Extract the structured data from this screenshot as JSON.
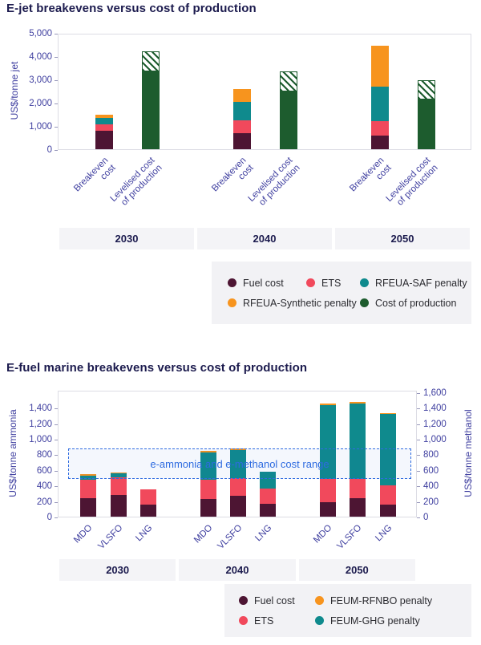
{
  "chart_data": [
    {
      "type": "bar",
      "title": "E-jet breakevens versus cost of production",
      "ylabel": "US$/tonne jet",
      "ylim": [
        0,
        5000
      ],
      "yticks": [
        "0",
        "1,000",
        "2,000",
        "3,000",
        "4,000",
        "5,000"
      ],
      "legend_position": "bottom-right",
      "grid": false,
      "series": [
        {
          "key": "fuel_cost",
          "name": "Fuel cost",
          "color": "#4d1533"
        },
        {
          "key": "ets",
          "name": "ETS",
          "color": "#f1495c"
        },
        {
          "key": "saf",
          "name": "RFEUA-SAF penalty",
          "color": "#0f8a8d"
        },
        {
          "key": "synthetic",
          "name": "RFEUA-Synthetic penalty",
          "color": "#f7941e"
        },
        {
          "key": "production",
          "name": "Cost of production",
          "color": "#1d5c2e"
        }
      ],
      "legend_rows": [
        [
          "fuel_cost",
          "ets",
          "saf"
        ],
        [
          "synthetic",
          "production"
        ]
      ],
      "groups": [
        {
          "year": "2030",
          "bars": [
            {
              "label": [
                "Breakeven",
                "cost"
              ],
              "kind": "stack",
              "segments": [
                {
                  "key": "fuel_cost",
                  "value": 800
                },
                {
                  "key": "ets",
                  "value": 280
                },
                {
                  "key": "saf",
                  "value": 270
                },
                {
                  "key": "synthetic",
                  "value": 150
                }
              ]
            },
            {
              "label": [
                "Levelised cost",
                "of production"
              ],
              "kind": "range",
              "key": "production",
              "solid_to": 3350,
              "hatched_to": 4200
            }
          ]
        },
        {
          "year": "2040",
          "bars": [
            {
              "label": [
                "Breakeven",
                "cost"
              ],
              "kind": "stack",
              "segments": [
                {
                  "key": "fuel_cost",
                  "value": 700
                },
                {
                  "key": "ets",
                  "value": 550
                },
                {
                  "key": "saf",
                  "value": 800
                },
                {
                  "key": "synthetic",
                  "value": 550
                }
              ]
            },
            {
              "label": [
                "Levelised cost",
                "of production"
              ],
              "kind": "range",
              "key": "production",
              "solid_to": 2500,
              "hatched_to": 3350
            }
          ]
        },
        {
          "year": "2050",
          "bars": [
            {
              "label": [
                "Breakeven",
                "cost"
              ],
              "kind": "stack",
              "segments": [
                {
                  "key": "fuel_cost",
                  "value": 600
                },
                {
                  "key": "ets",
                  "value": 600
                },
                {
                  "key": "saf",
                  "value": 1500
                },
                {
                  "key": "synthetic",
                  "value": 1750
                }
              ]
            },
            {
              "label": [
                "Levelised cost",
                "of production"
              ],
              "kind": "range",
              "key": "production",
              "solid_to": 2150,
              "hatched_to": 2950
            }
          ]
        }
      ]
    },
    {
      "type": "bar",
      "title": "E-fuel marine breakevens versus cost of production",
      "ylabel_left": "US$/tonne ammonia",
      "ylabel_right": "US$/tonne methanol",
      "ylim_left": [
        0,
        1400
      ],
      "ylim_right": [
        0,
        1600
      ],
      "yticks_left": [
        "0",
        "200",
        "400",
        "600",
        "800",
        "1,000",
        "1,200",
        "1,400"
      ],
      "yticks_right": [
        "0",
        "200",
        "400",
        "600",
        "800",
        "1,000",
        "1,200",
        "1,400",
        "1,600"
      ],
      "grid": false,
      "cost_range": {
        "label": "e-ammonia and e-methanol cost range",
        "min": 480,
        "max": 880
      },
      "series": [
        {
          "key": "fuel_cost",
          "name": "Fuel cost",
          "color": "#4d1533"
        },
        {
          "key": "ets",
          "name": "ETS",
          "color": "#f1495c"
        },
        {
          "key": "rfnbo",
          "name": "FEUM-RFNBO penalty",
          "color": "#f7941e"
        },
        {
          "key": "ghg",
          "name": "FEUM-GHG penalty",
          "color": "#0f8a8d"
        }
      ],
      "legend_rows": [
        [
          "fuel_cost",
          "rfnbo"
        ],
        [
          "ets",
          "ghg"
        ]
      ],
      "groups": [
        {
          "year": "2030",
          "bars": [
            {
              "label": [
                "MDO"
              ],
              "kind": "stack",
              "segments": [
                {
                  "key": "fuel_cost",
                  "value": 240
                },
                {
                  "key": "ets",
                  "value": 230
                },
                {
                  "key": "ghg",
                  "value": 60
                },
                {
                  "key": "rfnbo",
                  "value": 15
                }
              ]
            },
            {
              "label": [
                "VLSFO"
              ],
              "kind": "stack",
              "segments": [
                {
                  "key": "fuel_cost",
                  "value": 280
                },
                {
                  "key": "ets",
                  "value": 230
                },
                {
                  "key": "ghg",
                  "value": 50
                },
                {
                  "key": "rfnbo",
                  "value": 10
                }
              ]
            },
            {
              "label": [
                "LNG"
              ],
              "kind": "stack",
              "segments": [
                {
                  "key": "fuel_cost",
                  "value": 160
                },
                {
                  "key": "ets",
                  "value": 190
                }
              ]
            }
          ]
        },
        {
          "year": "2040",
          "bars": [
            {
              "label": [
                "MDO"
              ],
              "kind": "stack",
              "segments": [
                {
                  "key": "fuel_cost",
                  "value": 230
                },
                {
                  "key": "ets",
                  "value": 240
                },
                {
                  "key": "ghg",
                  "value": 360
                },
                {
                  "key": "rfnbo",
                  "value": 20
                }
              ]
            },
            {
              "label": [
                "VLSFO"
              ],
              "kind": "stack",
              "segments": [
                {
                  "key": "fuel_cost",
                  "value": 270
                },
                {
                  "key": "ets",
                  "value": 230
                },
                {
                  "key": "ghg",
                  "value": 360
                },
                {
                  "key": "rfnbo",
                  "value": 20
                }
              ]
            },
            {
              "label": [
                "LNG"
              ],
              "kind": "stack",
              "segments": [
                {
                  "key": "fuel_cost",
                  "value": 170
                },
                {
                  "key": "ets",
                  "value": 190
                },
                {
                  "key": "ghg",
                  "value": 220
                }
              ]
            }
          ]
        },
        {
          "year": "2050",
          "bars": [
            {
              "label": [
                "MDO"
              ],
              "kind": "stack",
              "segments": [
                {
                  "key": "fuel_cost",
                  "value": 190
                },
                {
                  "key": "ets",
                  "value": 290
                },
                {
                  "key": "ghg",
                  "value": 950
                },
                {
                  "key": "rfnbo",
                  "value": 25
                }
              ]
            },
            {
              "label": [
                "VLSFO"
              ],
              "kind": "stack",
              "segments": [
                {
                  "key": "fuel_cost",
                  "value": 240
                },
                {
                  "key": "ets",
                  "value": 250
                },
                {
                  "key": "ghg",
                  "value": 960
                },
                {
                  "key": "rfnbo",
                  "value": 25
                }
              ]
            },
            {
              "label": [
                "LNG"
              ],
              "kind": "stack",
              "segments": [
                {
                  "key": "fuel_cost",
                  "value": 160
                },
                {
                  "key": "ets",
                  "value": 240
                },
                {
                  "key": "ghg",
                  "value": 920
                },
                {
                  "key": "rfnbo",
                  "value": 10
                }
              ]
            }
          ]
        }
      ]
    }
  ]
}
